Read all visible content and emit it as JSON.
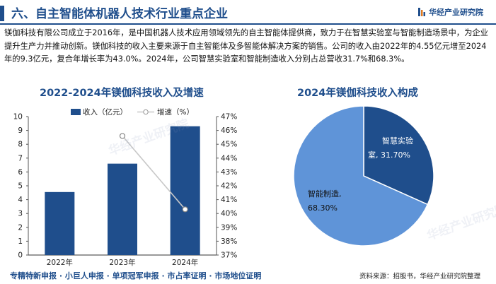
{
  "header": {
    "title": "六、自主智能体机器人技术行业重点企业",
    "brand": "华经产业研究院"
  },
  "intro": "镁伽科技有限公司成立于2016年，是中国机器人技术应用领域领先的自主智能体提供商，致力于在智慧实验室与智能制造场景中，为企业提升生产力并推动创新。镁伽科技的收入主要来源于自主智能体及多智能体解决方案的销售。公司的收入由2022年的4.55亿元增至2024年的9.3亿元，复合年增长率为43.0%。2024年，公司智慧实验室和智能制造收入分别占总营收31.7%和68.3%。",
  "chart_data": [
    {
      "type": "bar",
      "title": "2022-2024年镁伽科技收入及增速",
      "categories": [
        "2022年",
        "2023年",
        "2024年"
      ],
      "series": [
        {
          "name": "收入（亿元）",
          "type": "bar",
          "axis": "left",
          "values": [
            4.55,
            6.6,
            9.3
          ]
        },
        {
          "name": "增速（%）",
          "type": "line",
          "axis": "right",
          "values": [
            null,
            45.6,
            40.3
          ]
        }
      ],
      "ylim": [
        0,
        10
      ],
      "yticks": [
        "0",
        "1",
        "2",
        "3",
        "4",
        "5",
        "6",
        "7",
        "8",
        "9",
        "10"
      ],
      "y2lim": [
        37,
        47
      ],
      "y2ticks": [
        "37%",
        "38%",
        "39%",
        "40%",
        "41%",
        "42%",
        "43%",
        "44%",
        "45%",
        "46%",
        "47%"
      ],
      "colors": {
        "bar": "#1f4e8c",
        "line": "#c8c8c8"
      }
    },
    {
      "type": "pie",
      "title": "2024年镁伽科技收入构成",
      "slices": [
        {
          "label": "智慧实验室",
          "value": 31.7,
          "label_text": "智慧实验\n室, 31.70%",
          "color": "#1f4e8c"
        },
        {
          "label": "智能制造",
          "value": 68.3,
          "label_text": "智能制造,\n68.30%",
          "color": "#5f94d8"
        }
      ]
    }
  ],
  "footer": {
    "left": "专精特新申报 · 小巨人申报 · 单项冠军申报 · 市占率证明 · 市场地位证明",
    "right": "资料来源：招股书，华经产业研究院整理"
  },
  "watermark": "华经产业研究院"
}
